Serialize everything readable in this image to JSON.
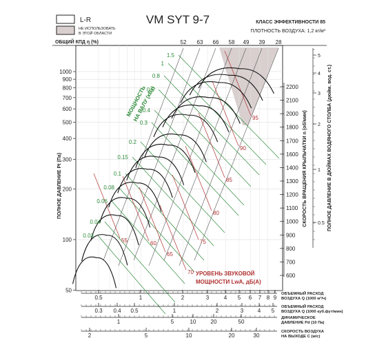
{
  "chart_data": {
    "type": "line",
    "title": "VM SYT 9-7",
    "class_text": "КЛАСС ЭФФЕКТИВНОСТИ 85",
    "density_text": "ПЛОТНОСТЬ ВОЗДУХА: 1,2 кг/м³",
    "legend": {
      "lr_label": "L-R",
      "unused_label_1": "НЕ ИСПОЛЬЗОВАТЬ",
      "unused_label_2": "В ЭТОЙ ОБЛАСТИ"
    },
    "efficiency_header": "ОБЩИЙ КПД η (%)",
    "efficiency_ticks": [
      "52",
      "63",
      "66",
      "58",
      "49",
      "39",
      "28"
    ],
    "left_axis_label": "ПОЛНОЕ ДАВЛЕНИЕ Pt (Па)",
    "left_ticks": [
      {
        "v": 1000,
        "t": "1000"
      },
      {
        "v": 900,
        "t": "900"
      },
      {
        "v": 800,
        "t": "800"
      },
      {
        "v": 700,
        "t": "700"
      },
      {
        "v": 600,
        "t": "600"
      },
      {
        "v": 500,
        "t": "500"
      },
      {
        "v": 400,
        "t": "400"
      },
      {
        "v": 300,
        "t": "300"
      },
      {
        "v": 200,
        "t": "200"
      },
      {
        "v": 100,
        "t": "100"
      },
      {
        "v": 50,
        "t": "50"
      }
    ],
    "speed_axis_label": "СКОРОСТЬ ВРАЩЕНИЯ КРЫЛЬЧАТКИ  n (об/мин)",
    "speed_ticks": [
      "2200",
      "2100",
      "2000",
      "1800",
      "1700",
      "1600",
      "1400",
      "1300",
      "1200",
      "1100",
      "1000",
      "900",
      "800",
      "700",
      "600"
    ],
    "inch_axis_label": "ПОЛНОЕ ДАВЛЕНИЕ В ДЮЙМАХ ВОДЯНОГО СТОЛБА (дюйм. вод. ст.)",
    "inch_ticks": [
      "5",
      "4",
      "3",
      "2",
      "1",
      "0.5"
    ],
    "power_label_1": "МОЩНОСТЬ",
    "power_label_2": "НА ВАЛУ (кВт)",
    "power_values": [
      "1.5",
      "1",
      "0.8",
      "0.6",
      "0.4",
      "0.3",
      "0.2",
      "0.15",
      "0.1",
      "0.08",
      "0.06",
      "0.04",
      "0.03"
    ],
    "sound_label_1": "УРОВЕНЬ ЗВУКОВОЙ",
    "sound_label_2": "МОЩНОСТИ LwA, дБ(А)",
    "sound_values": [
      "95",
      "90",
      "85",
      "80",
      "75",
      "70",
      "65",
      "60",
      "55"
    ],
    "bottom_scales": [
      {
        "label_1": "ОБЪЕМНЫЙ РАСХОД",
        "label_2": "ВОЗДУХА Q (1000 м³/ч)",
        "ticks": [
          "0.5",
          "1",
          "2",
          "3",
          "4",
          "5",
          "6",
          "7",
          "8",
          "9"
        ]
      },
      {
        "label_1": "ОБЪЕМНЫЙ РАСХОД",
        "label_2": "ВОЗДУХА Q (1000 куб.фут/мин)",
        "ticks": [
          "0.3",
          "0.4",
          "0.5",
          "1",
          "2",
          "3",
          "4",
          "5"
        ]
      },
      {
        "label_1": "ДИНАМИЧЕСКОЕ",
        "label_2": "ДАВЛЕНИЕ Pd (10 Па)",
        "ticks": [
          "1",
          "5",
          "10",
          "20",
          "50"
        ]
      },
      {
        "label_1": "СКОРОСТЬ ВОЗДУХА",
        "label_2": "НА ВЫХОДЕ С (м/с)",
        "ticks": [
          "2",
          "5",
          "10",
          "20",
          "30"
        ]
      }
    ],
    "series": [
      {
        "label": "2200",
        "peak": 1040
      },
      {
        "label": "2100",
        "peak": 950
      },
      {
        "label": "2000",
        "peak": 860
      },
      {
        "label": "1800",
        "peak": 700
      },
      {
        "label": "1700",
        "peak": 625
      },
      {
        "label": "1600",
        "peak": 550
      },
      {
        "label": "1400",
        "peak": 420
      },
      {
        "label": "1300",
        "peak": 365
      },
      {
        "label": "1200",
        "peak": 310
      },
      {
        "label": "1100",
        "peak": 262
      },
      {
        "label": "1000",
        "peak": 217
      },
      {
        "label": "900",
        "peak": 176
      },
      {
        "label": "800",
        "peak": 139
      },
      {
        "label": "700",
        "peak": 106
      },
      {
        "label": "600",
        "peak": 78
      }
    ],
    "colors": {
      "speed_curve": "#111111",
      "power_line": "#2e8b3a",
      "sound_line": "#b03030",
      "efficiency_line": "#555555",
      "unused_fill": "#d9cfcf"
    }
  }
}
